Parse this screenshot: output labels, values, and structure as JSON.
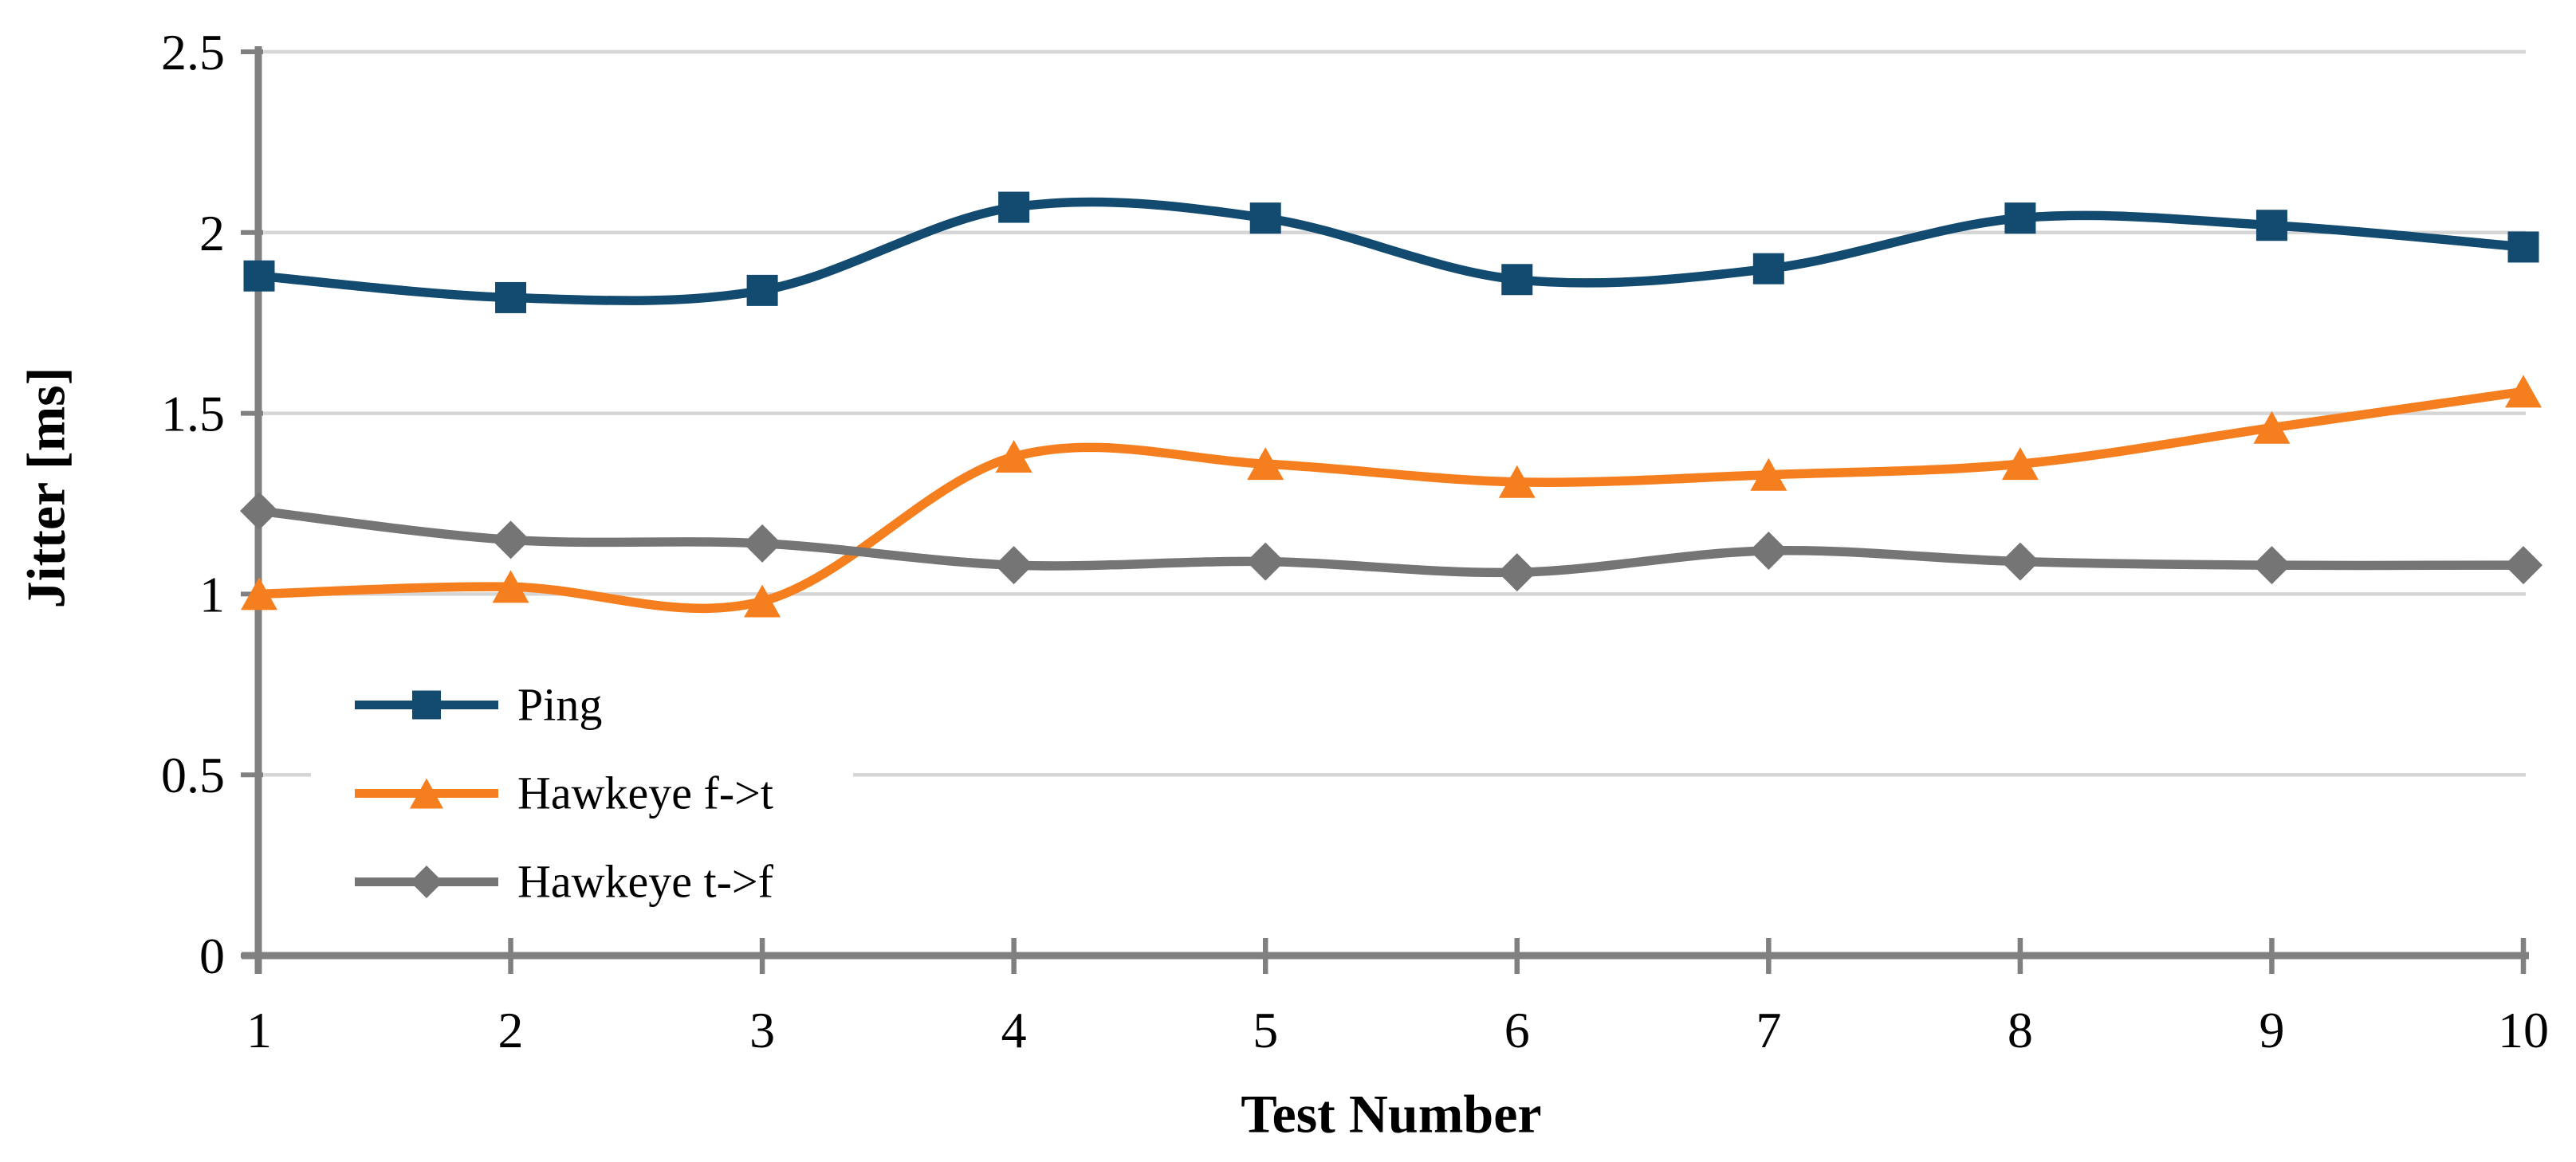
{
  "chart_data": {
    "type": "line",
    "title": "",
    "xlabel": "Test Number",
    "ylabel": "Jitter [ms]",
    "x": [
      1,
      2,
      3,
      4,
      5,
      6,
      7,
      8,
      9,
      10
    ],
    "x_ticklabels": [
      "1",
      "2",
      "3",
      "4",
      "5",
      "6",
      "7",
      "8",
      "9",
      "10"
    ],
    "y_ticks": [
      0,
      0.5,
      1,
      1.5,
      2,
      2.5
    ],
    "y_ticklabels": [
      "0",
      "0.5",
      "1",
      "1.5",
      "2",
      "2.5"
    ],
    "ylim": [
      0,
      2.5
    ],
    "grid": "horizontal-only",
    "line_style": "smooth",
    "legend_position": "inside-lower-left",
    "series": [
      {
        "name": "Ping",
        "color": "#124A70",
        "marker": "square",
        "values": [
          1.88,
          1.82,
          1.84,
          2.07,
          2.04,
          1.87,
          1.9,
          2.04,
          2.02,
          1.96
        ]
      },
      {
        "name": "Hawkeye f->t",
        "color": "#F57F1F",
        "marker": "triangle",
        "values": [
          1.0,
          1.02,
          0.98,
          1.38,
          1.36,
          1.31,
          1.33,
          1.36,
          1.46,
          1.56
        ]
      },
      {
        "name": "Hawkeye t->f",
        "color": "#757575",
        "marker": "diamond",
        "values": [
          1.23,
          1.15,
          1.14,
          1.08,
          1.09,
          1.06,
          1.12,
          1.09,
          1.08,
          1.08
        ]
      }
    ],
    "colors": {
      "gridline": "#D6D6D6",
      "axis": "#808080",
      "text": "#000000"
    }
  }
}
